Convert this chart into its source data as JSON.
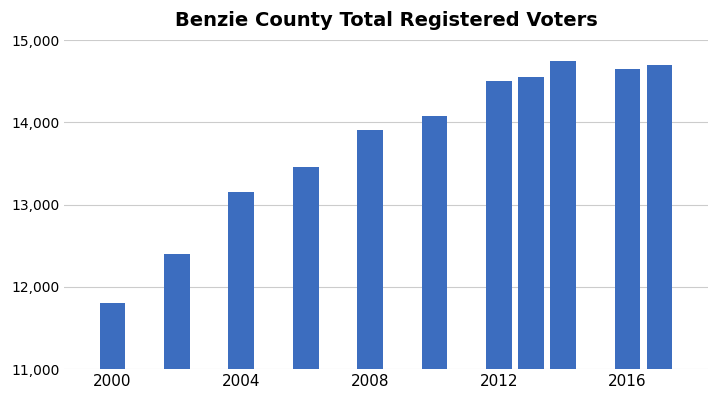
{
  "title": "Benzie County Total Registered Voters",
  "years": [
    2000,
    2002,
    2004,
    2006,
    2008,
    2010,
    2012,
    2013,
    2014,
    2016,
    2017
  ],
  "values": [
    11800,
    12400,
    13150,
    13450,
    13900,
    14075,
    14500,
    14550,
    14750,
    14650,
    14700
  ],
  "bar_color": "#3c6dbf",
  "ylim": [
    11000,
    15000
  ],
  "yticks": [
    11000,
    12000,
    13000,
    14000,
    15000
  ],
  "xtick_positions": [
    2000,
    2004,
    2008,
    2012,
    2016
  ],
  "xtick_labels": [
    "2000",
    "2004",
    "2008",
    "2012",
    "2016"
  ],
  "title_fontsize": 14,
  "background_color": "#ffffff",
  "grid_color": "#cccccc",
  "bar_width": 0.8,
  "xlim": [
    1998.5,
    2018.5
  ]
}
